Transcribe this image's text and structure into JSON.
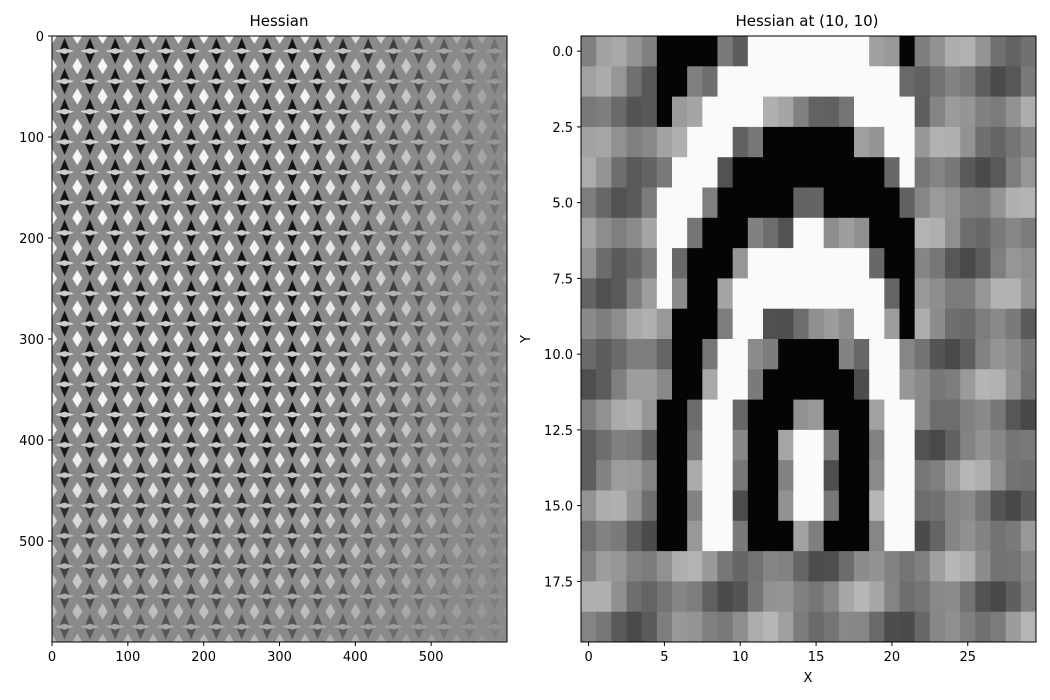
{
  "chart_data": [
    {
      "type": "heatmap",
      "title": "Hessian",
      "xlabel": "",
      "ylabel": "",
      "xlim": [
        0,
        600
      ],
      "ylim": [
        600,
        0
      ],
      "colormap": "gray",
      "xticks": [
        0,
        100,
        200,
        300,
        400,
        500
      ],
      "yticks": [
        0,
        100,
        200,
        300,
        400,
        500
      ],
      "pattern": "diamond-checker",
      "grid_cols": 18,
      "grid_rows": 20
    },
    {
      "type": "heatmap",
      "title": "Hessian at (10, 10)",
      "xlabel": "X",
      "ylabel": "Y",
      "xlim": [
        -0.5,
        29.5
      ],
      "ylim": [
        19.5,
        -0.5
      ],
      "colormap": "gray",
      "xticks": [
        0,
        5,
        10,
        15,
        20,
        25
      ],
      "xtick_labels": [
        "0",
        "5",
        "10",
        "15",
        "20",
        "25"
      ],
      "yticks": [
        0,
        2.5,
        5,
        7.5,
        10,
        12.5,
        15,
        17.5
      ],
      "ytick_labels": [
        "0.0",
        "2.5",
        "5.0",
        "7.5",
        "10.0",
        "12.5",
        "15.0",
        "17.5"
      ],
      "cols": 30,
      "rows": 20
    }
  ]
}
